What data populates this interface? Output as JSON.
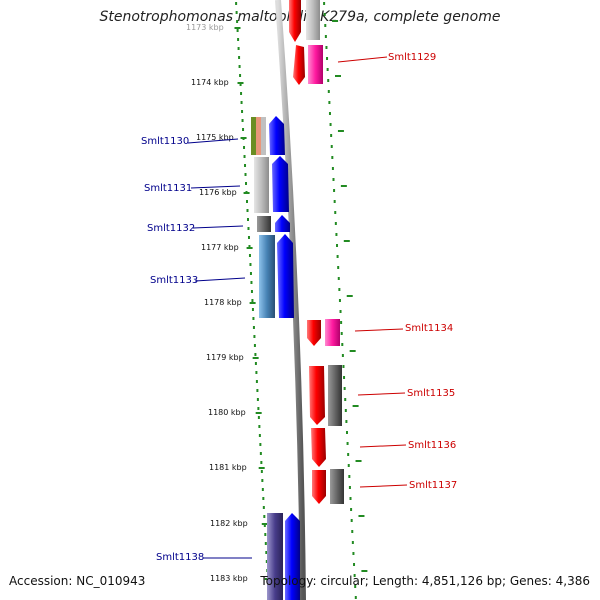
{
  "title": "Stenotrophomonas maltophilia K279a, complete genome",
  "footer": {
    "accession": "Accession: NC_010943",
    "stats": "Topology: circular; Length: 4,851,126 bp; Genes: 4,386"
  },
  "axis": {
    "ticks": [
      "1173 kbp",
      "1174 kbp",
      "1175 kbp",
      "1176 kbp",
      "1177 kbp",
      "1178 kbp",
      "1179 kbp",
      "1180 kbp",
      "1181 kbp",
      "1182 kbp",
      "1183 kbp"
    ]
  },
  "genes": [
    {
      "name": "Smlt1129",
      "strand": "reverse"
    },
    {
      "name": "Smlt1130",
      "strand": "forward"
    },
    {
      "name": "Smlt1131",
      "strand": "forward"
    },
    {
      "name": "Smlt1132",
      "strand": "forward"
    },
    {
      "name": "Smlt1133",
      "strand": "forward"
    },
    {
      "name": "Smlt1134",
      "strand": "reverse"
    },
    {
      "name": "Smlt1135",
      "strand": "reverse"
    },
    {
      "name": "Smlt1136",
      "strand": "reverse"
    },
    {
      "name": "Smlt1137",
      "strand": "reverse"
    },
    {
      "name": "Smlt1138",
      "strand": "forward"
    }
  ],
  "colors": {
    "forward_label": "#00008b",
    "reverse_label": "#cc0000",
    "forward_gene": "#0000ff",
    "reverse_gene": "#ff0000",
    "dotted_ring": "#228b22",
    "backbone": "#999999"
  }
}
